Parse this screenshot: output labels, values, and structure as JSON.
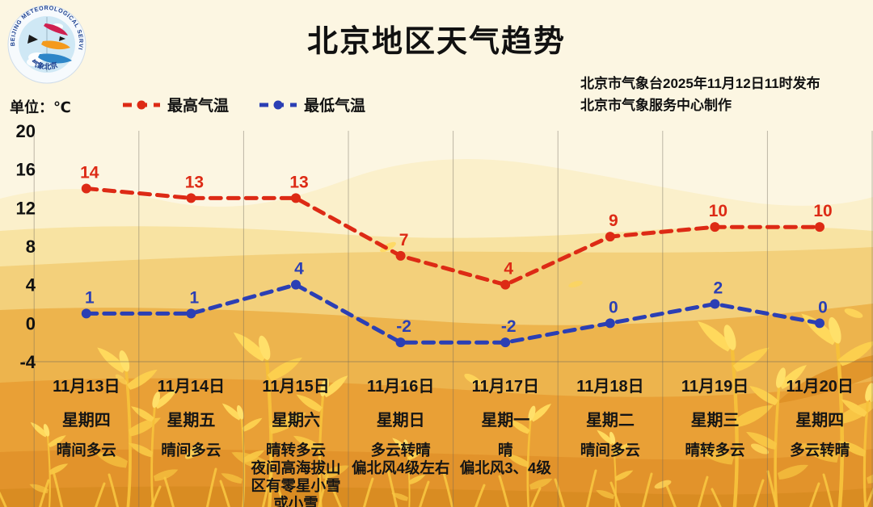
{
  "logo": {
    "ring_text": "BEIJING METEOROLOGICAL SERVICE",
    "bottom_text": "气象北京"
  },
  "header": {
    "title": "北京地区天气趋势",
    "source_line1": "北京市气象台2025年11月12日11时发布",
    "source_line2": "北京市气象服务中心制作"
  },
  "axis": {
    "unit_label": "单位：℃"
  },
  "chart_data": {
    "type": "line",
    "title": "北京地区天气趋势",
    "ylabel": "单位：℃",
    "categories": [
      "11月13日",
      "11月14日",
      "11月15日",
      "11月16日",
      "11月17日",
      "11月18日",
      "11月19日",
      "11月20日"
    ],
    "series": [
      {
        "name": "最高气温",
        "color": "#dd2a15",
        "values": [
          14,
          13,
          13,
          7,
          4,
          9,
          10,
          10
        ]
      },
      {
        "name": "最低气温",
        "color": "#2b3fb4",
        "values": [
          1,
          1,
          4,
          -2,
          -2,
          0,
          2,
          0
        ]
      }
    ],
    "ylim": [
      -4,
      20
    ],
    "yticks": [
      20,
      16,
      12,
      8,
      4,
      0,
      -4
    ],
    "grid": "vertical-only",
    "line_style": "dashed-with-dots",
    "legend_position": "top-left"
  },
  "columns": [
    {
      "date": "11月13日",
      "weekday": "星期四",
      "weather": [
        "晴间多云"
      ]
    },
    {
      "date": "11月14日",
      "weekday": "星期五",
      "weather": [
        "晴间多云"
      ]
    },
    {
      "date": "11月15日",
      "weekday": "星期六",
      "weather": [
        "晴转多云",
        "夜间高海拔山",
        "区有零星小雪",
        "或小雪"
      ]
    },
    {
      "date": "11月16日",
      "weekday": "星期日",
      "weather": [
        "多云转晴",
        "偏北风4级左右"
      ]
    },
    {
      "date": "11月17日",
      "weekday": "星期一",
      "weather": [
        "晴",
        "偏北风3、4级"
      ]
    },
    {
      "date": "11月18日",
      "weekday": "星期二",
      "weather": [
        "晴间多云"
      ]
    },
    {
      "date": "11月19日",
      "weekday": "星期三",
      "weather": [
        "晴转多云"
      ]
    },
    {
      "date": "11月20日",
      "weekday": "星期四",
      "weather": [
        "多云转晴"
      ]
    }
  ]
}
